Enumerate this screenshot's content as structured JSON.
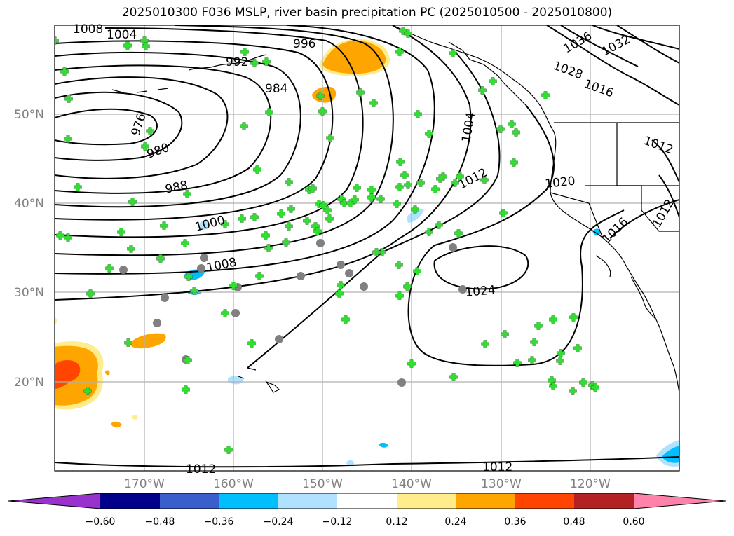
{
  "title": "2025010300 F036 MSLP, river basin precipitation PC (2025010500 - 2025010800)",
  "lat_labels": [
    "50°N",
    "40°N",
    "30°N",
    "20°N"
  ],
  "lon_labels": [
    "170°W",
    "160°W",
    "150°W",
    "140°W",
    "130°W",
    "120°W"
  ],
  "contour_labels": [
    "1008",
    "1004",
    "996",
    "992",
    "984",
    "976",
    "980",
    "988",
    "1000",
    "1008",
    "1004",
    "1012",
    "1020",
    "1024",
    "1016",
    "1012",
    "1036",
    "1032",
    "1028",
    "1016",
    "1012",
    "1012",
    "1012"
  ],
  "colorbar": {
    "ticks": [
      "−0.60",
      "−0.48",
      "−0.36",
      "−0.24",
      "−0.12",
      "0.12",
      "0.24",
      "0.36",
      "0.48",
      "0.60"
    ],
    "colors": [
      "#9932cc",
      "#00008b",
      "#3a5fcd",
      "#00bfff",
      "#b0e2ff",
      "#ffffff",
      "#ffec8b",
      "#ffa500",
      "#ff4500",
      "#b22222",
      "#ff82ab"
    ]
  },
  "colors": {
    "contour": "#000000",
    "marker_fill": "#33dd33",
    "marker_gray": "#808080",
    "grid": "#b0b0b0"
  }
}
